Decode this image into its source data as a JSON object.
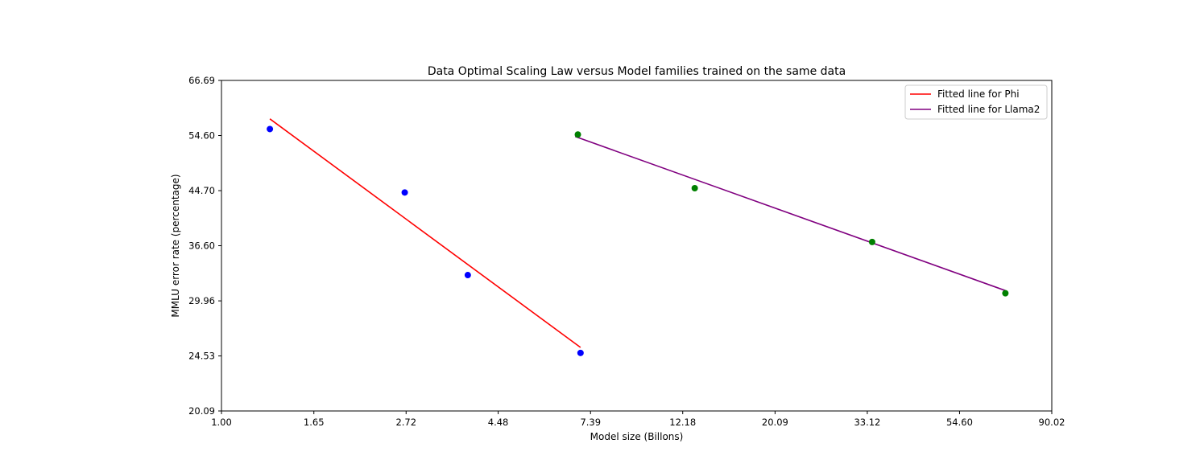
{
  "chart_data": {
    "type": "scatter",
    "title": "Data Optimal Scaling Law versus Model families trained on the same data",
    "xlabel": "Model size (Billons)",
    "ylabel": "MMLU error rate (percentage)",
    "x_scale": "log",
    "y_scale": "log",
    "xlim": [
      1.0,
      90.02
    ],
    "ylim": [
      20.09,
      66.69
    ],
    "x_ticks": [
      1.0,
      1.65,
      2.72,
      4.48,
      7.39,
      12.18,
      20.09,
      33.12,
      54.6,
      90.02
    ],
    "x_tick_labels": [
      "1.00",
      "1.65",
      "2.72",
      "4.48",
      "7.39",
      "12.18",
      "20.09",
      "33.12",
      "54.60",
      "90.02"
    ],
    "y_ticks": [
      20.09,
      24.53,
      29.96,
      36.6,
      44.7,
      54.6,
      66.69
    ],
    "y_tick_labels": [
      "20.09",
      "24.53",
      "29.96",
      "36.60",
      "44.70",
      "54.60",
      "66.69"
    ],
    "grid": false,
    "legend_position": "upper right",
    "point_series": [
      {
        "color": "#0000ff",
        "points": [
          [
            1.3,
            55.9
          ],
          [
            2.7,
            44.4
          ],
          [
            3.8,
            32.9
          ],
          [
            7.0,
            24.8
          ]
        ]
      },
      {
        "color": "#008000",
        "points": [
          [
            6.9,
            54.8
          ],
          [
            13.0,
            45.1
          ],
          [
            34.0,
            37.1
          ],
          [
            70.0,
            30.8
          ]
        ]
      }
    ],
    "line_series": [
      {
        "name": "Fitted line for Phi",
        "color": "#ff0000",
        "points": [
          [
            1.3,
            58.0
          ],
          [
            7.0,
            25.3
          ]
        ]
      },
      {
        "name": "Fitted line for Llama2",
        "color": "#800080",
        "points": [
          [
            6.8,
            54.4
          ],
          [
            70.0,
            31.1
          ]
        ]
      }
    ]
  }
}
